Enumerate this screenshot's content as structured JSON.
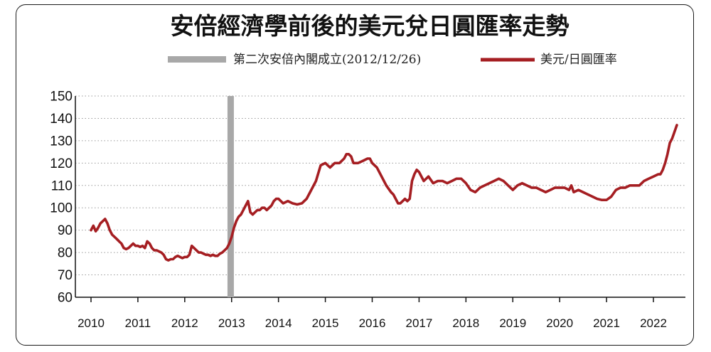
{
  "chart_data": {
    "type": "line",
    "title": "安倍經濟學前後的美元兌日圓匯率走勢",
    "xlabel": "",
    "ylabel": "",
    "ylim": [
      60,
      150
    ],
    "yticks": [
      150,
      140,
      130,
      120,
      110,
      100,
      90,
      80,
      70,
      60
    ],
    "xticks": [
      "2010",
      "2011",
      "2012",
      "2013",
      "2014",
      "2015",
      "2016",
      "2017",
      "2018",
      "2019",
      "2020",
      "2021",
      "2022"
    ],
    "grid": "horizontal-dotted",
    "legend_position": "top",
    "marker": {
      "label": "第二次安倍內閣成立(2012/12/26)",
      "x": 2012.98,
      "color": "#a8a8a8"
    },
    "series": [
      {
        "name": "美元/日圓匯率",
        "color": "#a51e22",
        "x": [
          2010.0,
          2010.05,
          2010.1,
          2010.15,
          2010.2,
          2010.25,
          2010.3,
          2010.35,
          2010.4,
          2010.45,
          2010.5,
          2010.55,
          2010.6,
          2010.65,
          2010.7,
          2010.75,
          2010.8,
          2010.85,
          2010.9,
          2010.95,
          2011.0,
          2011.05,
          2011.1,
          2011.15,
          2011.2,
          2011.25,
          2011.3,
          2011.35,
          2011.4,
          2011.45,
          2011.5,
          2011.55,
          2011.6,
          2011.65,
          2011.7,
          2011.75,
          2011.8,
          2011.85,
          2011.9,
          2011.95,
          2012.0,
          2012.05,
          2012.1,
          2012.15,
          2012.2,
          2012.25,
          2012.3,
          2012.35,
          2012.4,
          2012.45,
          2012.5,
          2012.55,
          2012.6,
          2012.65,
          2012.7,
          2012.75,
          2012.8,
          2012.85,
          2012.9,
          2012.95,
          2013.0,
          2013.05,
          2013.1,
          2013.15,
          2013.2,
          2013.25,
          2013.3,
          2013.35,
          2013.4,
          2013.45,
          2013.5,
          2013.55,
          2013.6,
          2013.65,
          2013.7,
          2013.75,
          2013.8,
          2013.85,
          2013.9,
          2013.95,
          2014.0,
          2014.1,
          2014.2,
          2014.3,
          2014.4,
          2014.5,
          2014.6,
          2014.7,
          2014.8,
          2014.9,
          2015.0,
          2015.05,
          2015.1,
          2015.2,
          2015.3,
          2015.4,
          2015.45,
          2015.5,
          2015.55,
          2015.6,
          2015.7,
          2015.8,
          2015.9,
          2015.95,
          2016.0,
          2016.1,
          2016.2,
          2016.3,
          2016.4,
          2016.45,
          2016.5,
          2016.55,
          2016.6,
          2016.65,
          2016.7,
          2016.75,
          2016.8,
          2016.85,
          2016.9,
          2016.95,
          2017.0,
          2017.1,
          2017.2,
          2017.3,
          2017.4,
          2017.5,
          2017.6,
          2017.7,
          2017.8,
          2017.9,
          2018.0,
          2018.1,
          2018.2,
          2018.3,
          2018.4,
          2018.5,
          2018.6,
          2018.7,
          2018.8,
          2018.9,
          2019.0,
          2019.1,
          2019.2,
          2019.3,
          2019.4,
          2019.5,
          2019.6,
          2019.7,
          2019.8,
          2019.9,
          2020.0,
          2020.1,
          2020.2,
          2020.25,
          2020.3,
          2020.4,
          2020.5,
          2020.6,
          2020.7,
          2020.8,
          2020.9,
          2021.0,
          2021.1,
          2021.2,
          2021.3,
          2021.4,
          2021.5,
          2021.6,
          2021.7,
          2021.8,
          2021.9,
          2022.0,
          2022.1,
          2022.15,
          2022.2,
          2022.25,
          2022.3,
          2022.35,
          2022.4,
          2022.45,
          2022.5
        ],
        "values": [
          90,
          92,
          89.5,
          91,
          93,
          94,
          95,
          93,
          90,
          88,
          87,
          86,
          85,
          84,
          82,
          81.5,
          82,
          83,
          84,
          83,
          83,
          82.5,
          83,
          82,
          85,
          84,
          82,
          81,
          81,
          80.5,
          80,
          79,
          77,
          76.5,
          77,
          77,
          78,
          78.5,
          78,
          77.5,
          78,
          78,
          79,
          83,
          82,
          81,
          80,
          80,
          79.5,
          79,
          79,
          78.5,
          79,
          78.5,
          78.5,
          79.5,
          80,
          81,
          82,
          84,
          87,
          91,
          94,
          96,
          97,
          99,
          101,
          103,
          98,
          97,
          98,
          99,
          99,
          100,
          100,
          99,
          100,
          101,
          103,
          104,
          104,
          102,
          103,
          102,
          101.5,
          102,
          104,
          108,
          112,
          119,
          120,
          119,
          118,
          120,
          120,
          122,
          124,
          124,
          123,
          120,
          120,
          121,
          122,
          122,
          120,
          118,
          114,
          110,
          107,
          106,
          104,
          102,
          102,
          103,
          104,
          103,
          104,
          112,
          115,
          117,
          116,
          112,
          114,
          111,
          112,
          112,
          111,
          112,
          113,
          113,
          111,
          108,
          107,
          109,
          110,
          111,
          112,
          113,
          112,
          110,
          108,
          110,
          111,
          110,
          109,
          109,
          108,
          107,
          108,
          109,
          109,
          109,
          108,
          110,
          107,
          108,
          107,
          106,
          105,
          104,
          103.5,
          103.5,
          105,
          108,
          109,
          109,
          110,
          110,
          110,
          112,
          113,
          114,
          115,
          115,
          117,
          120,
          124,
          129,
          131,
          134,
          137
        ]
      }
    ]
  }
}
